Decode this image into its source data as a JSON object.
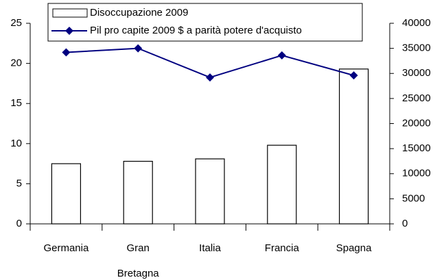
{
  "chart_data": {
    "type": "bar_line",
    "categories": [
      "Germania",
      "Gran Bretagna",
      "Italia",
      "Francia",
      "Spagna"
    ],
    "series": [
      {
        "name": "Disoccupazione 2009",
        "type": "bar",
        "color": "#ffffff",
        "values": [
          7.5,
          7.8,
          8.1,
          9.8,
          19.3
        ]
      },
      {
        "name": "Pil pro capite 2009 $ a parità potere d'acquisto",
        "type": "line",
        "axis": "y2",
        "color": "#000080",
        "values": [
          34200,
          35000,
          29200,
          33600,
          29600
        ]
      }
    ],
    "ylim": [
      0,
      25
    ],
    "yticks": [
      0,
      5,
      10,
      15,
      20,
      25
    ],
    "y2lim": [
      0,
      40000
    ],
    "y2ticks": [
      0,
      5000,
      10000,
      15000,
      20000,
      25000,
      30000,
      35000,
      40000
    ],
    "grid": false,
    "legend": "top"
  }
}
